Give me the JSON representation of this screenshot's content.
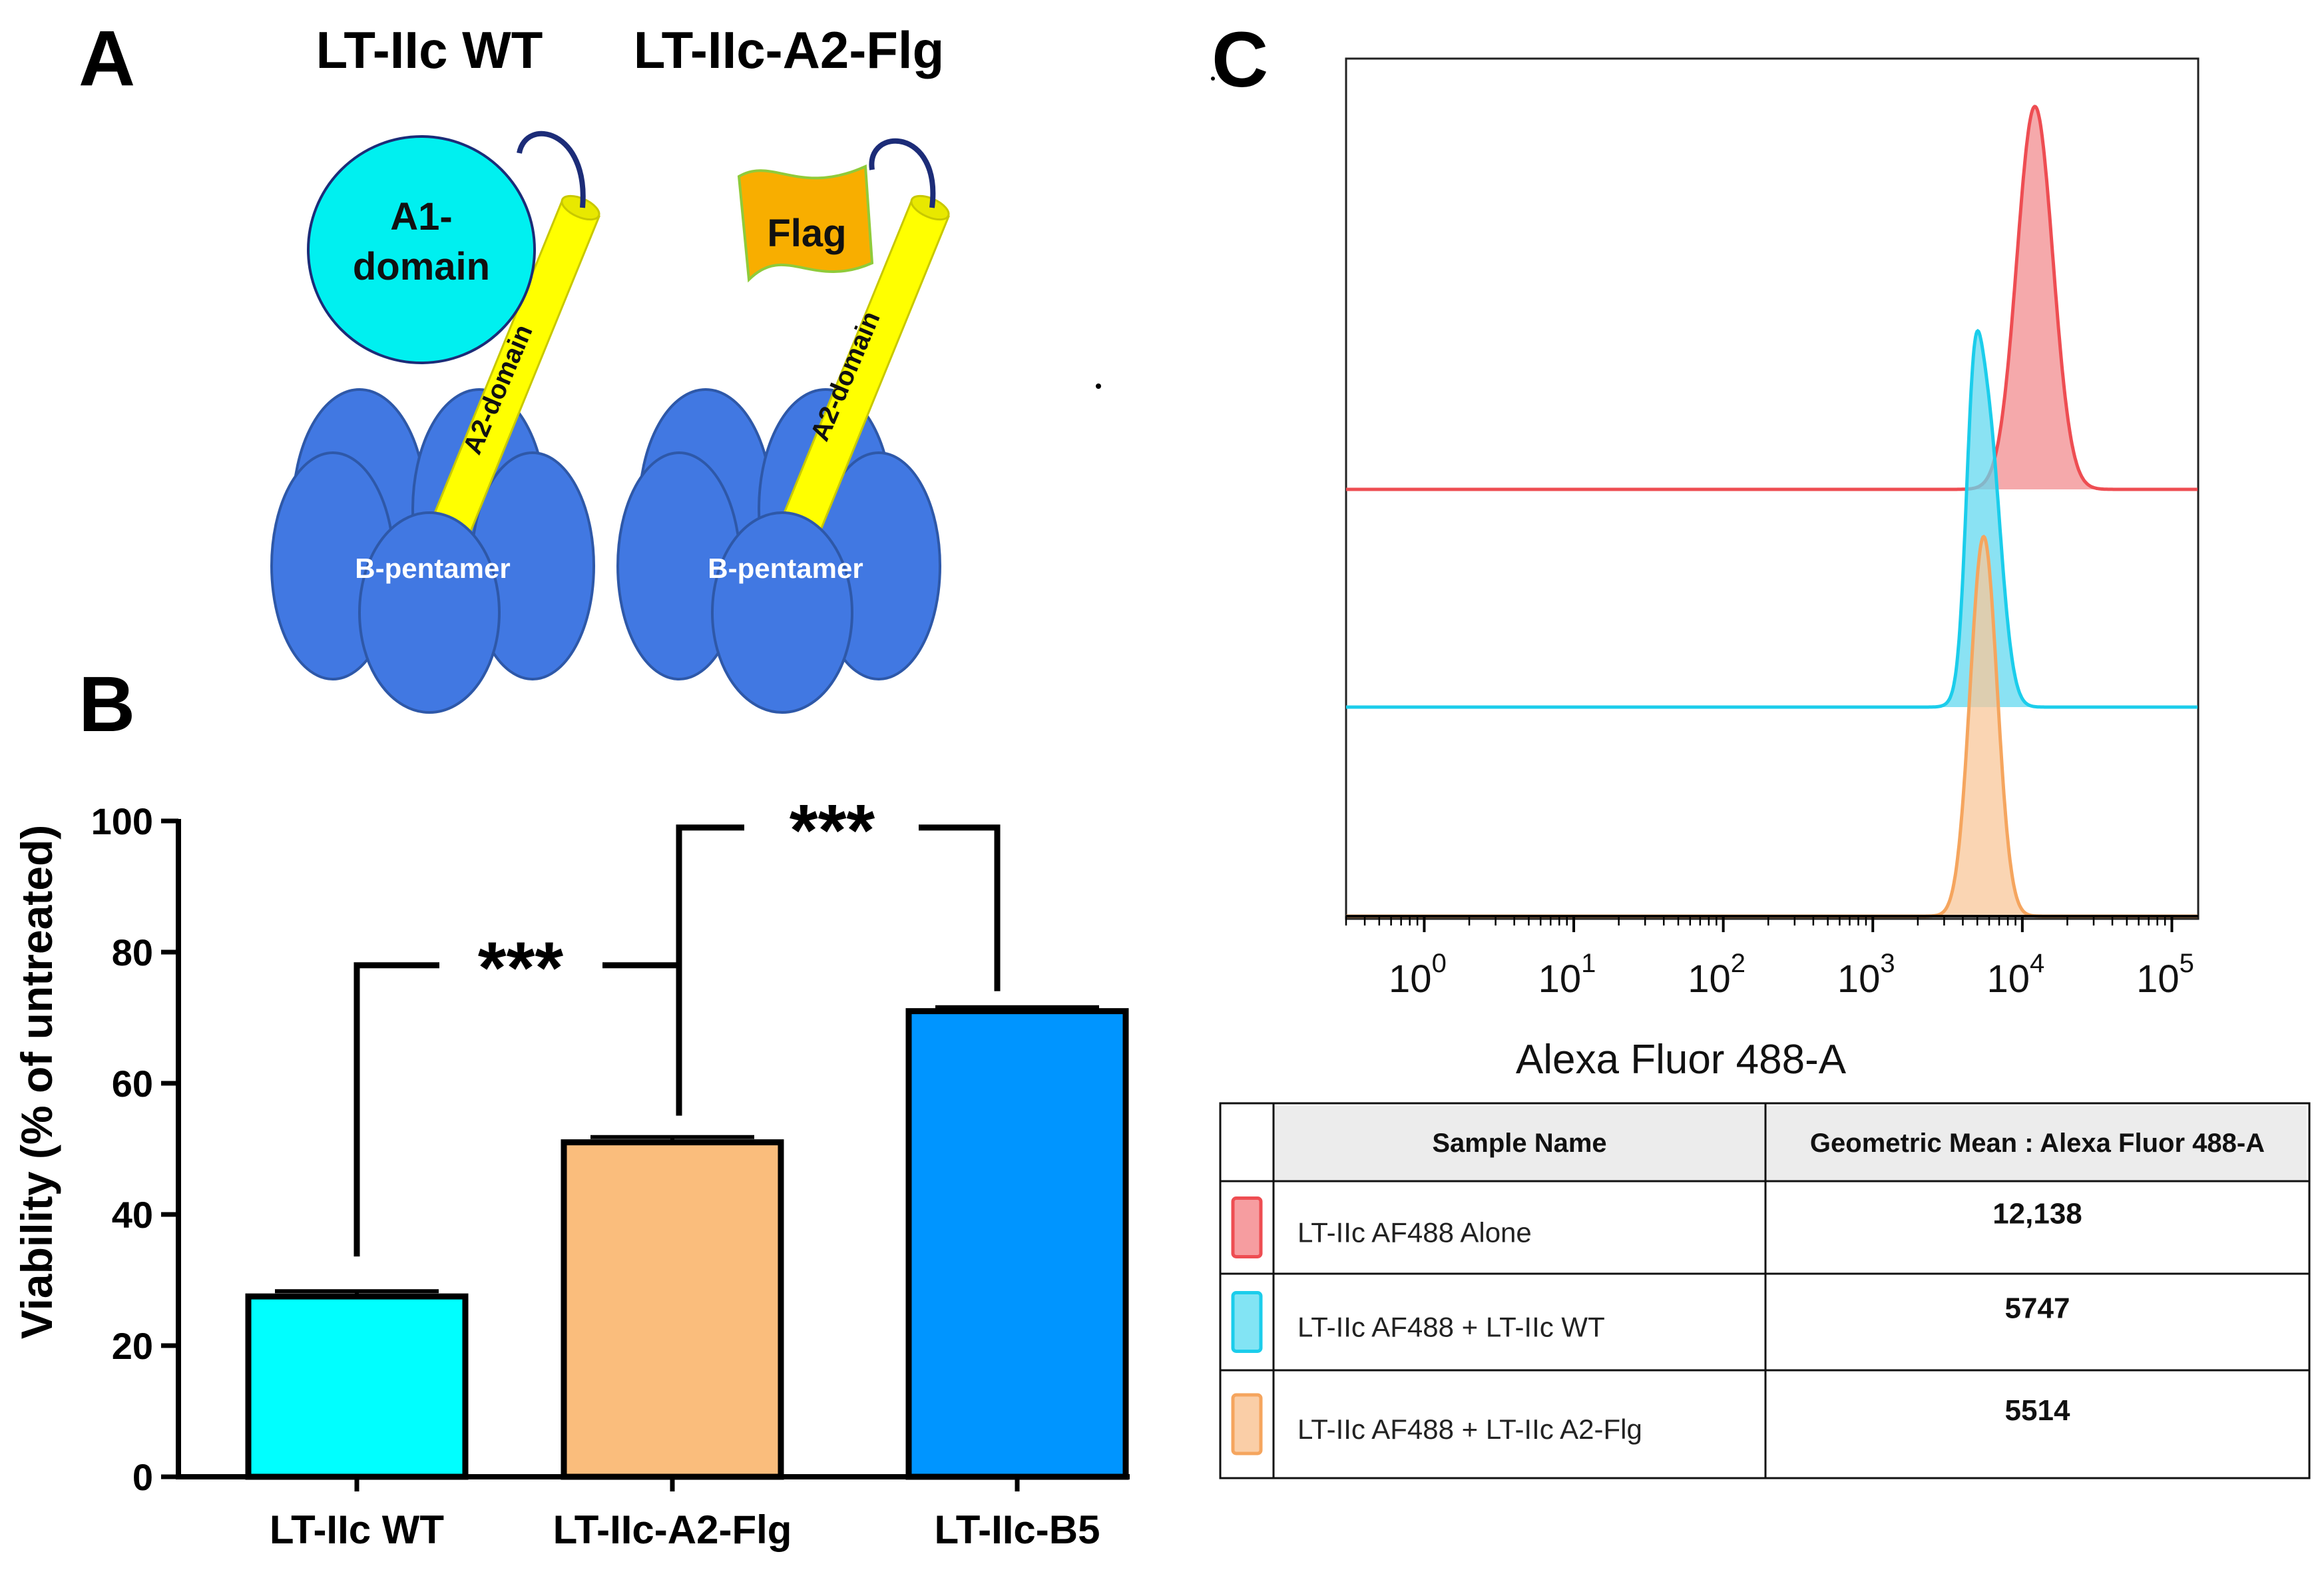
{
  "panels": {
    "a": "A",
    "b": "B",
    "c": "C"
  },
  "diagram": {
    "wt_title": "LT-IIc WT",
    "flg_title": "LT-IIc-A2-Flg",
    "a1_line1": "A1-",
    "a1_line2": "domain",
    "a2_label": "A2-domain",
    "flag_label": "Flag",
    "pentamer_label": "B-pentamer",
    "colors": {
      "a1": "#00F0F0",
      "a2": "#FFFF00",
      "flag": "#F8AE00",
      "pentamer": "#4178E2",
      "linker": "#1C2C78"
    }
  },
  "chart_data": [
    {
      "type": "bar",
      "panel": "B",
      "categories": [
        "LT-IIc WT",
        "LT-IIc-A2-Flg",
        "LT-IIc-B5"
      ],
      "values": [
        27.5,
        51,
        71
      ],
      "errors": [
        0.8,
        0.8,
        0.6
      ],
      "colors": [
        "#00FFFF",
        "#FABD7C",
        "#0095FF"
      ],
      "ylabel": "Viability (% of untreated)",
      "xlabel": "",
      "ylim": [
        0,
        100
      ],
      "yticks": [
        "0",
        "20",
        "40",
        "60",
        "80",
        "100"
      ],
      "significance": [
        {
          "from": 0,
          "to": 1,
          "label": "***",
          "height": 78
        },
        {
          "from": 1,
          "to": 2,
          "label": "***",
          "height": 99
        }
      ]
    },
    {
      "type": "area",
      "panel": "C",
      "xlabel": "Alexa Fluor 488-A",
      "xscale": "log",
      "xlim": [
        0.3,
        150000
      ],
      "xticks": [
        {
          "base": "10",
          "exp": "0"
        },
        {
          "base": "10",
          "exp": "1"
        },
        {
          "base": "10",
          "exp": "2"
        },
        {
          "base": "10",
          "exp": "3"
        },
        {
          "base": "10",
          "exp": "4"
        },
        {
          "base": "10",
          "exp": "5"
        }
      ],
      "series": [
        {
          "name": "LT-IIc AF488 Alone",
          "peak": 12138,
          "width_decades": 0.12,
          "color": "#EE4D52",
          "fill": "#F28C8F"
        },
        {
          "name": "LT-IIc AF488 + LT-IIc WT",
          "peak": 5747,
          "width_decades": 0.09,
          "color": "#1BCDEB",
          "fill": "#63D8EF"
        },
        {
          "name": "LT-IIc AF488 + LT-IIc A2-Flg",
          "peak": 5514,
          "width_decades": 0.09,
          "color": "#F5A55E",
          "fill": "#F8C79A"
        }
      ],
      "table": {
        "headers": [
          "Sample Name",
          "Geometric Mean : Alexa Fluor 488-A"
        ],
        "rows": [
          {
            "name": "LT-IIc AF488 Alone",
            "value": "12,138",
            "color": "#EE4D52"
          },
          {
            "name": "LT-IIc AF488 + LT-IIc WT",
            "value": "5747",
            "color": "#1BCDEB"
          },
          {
            "name": "LT-IIc AF488 + LT-IIc A2-Flg",
            "value": "5514",
            "color": "#F5A55E"
          }
        ]
      }
    }
  ]
}
